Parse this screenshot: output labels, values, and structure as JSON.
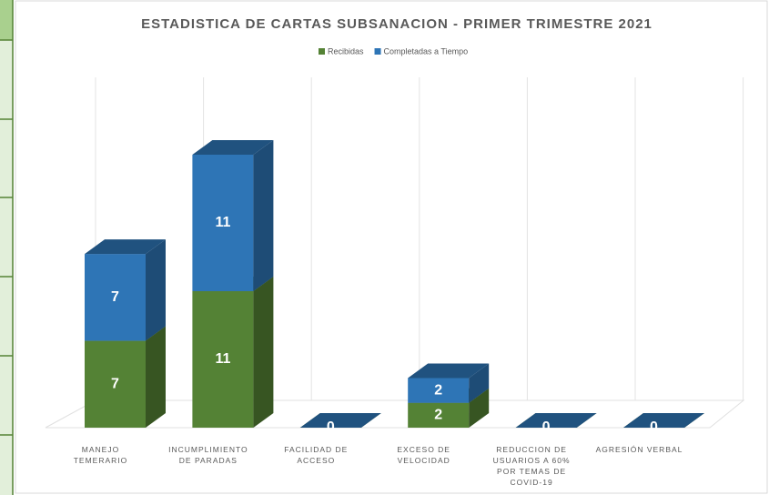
{
  "chart_data": {
    "type": "bar3d_stacked",
    "title": "ESTADISTICA DE CARTAS SUBSANACION - PRIMER TRIMESTRE 2021",
    "categories": [
      "MANEJO TEMERARIO",
      "INCUMPLIMIENTO DE PARADAS",
      "FACILIDAD DE ACCESO",
      "EXCESO DE VELOCIDAD",
      "REDUCCION DE USUARIOS A 60% POR TEMAS DE COVID-19",
      "AGRESIÓN VERBAL"
    ],
    "series": [
      {
        "name": "Recibidas",
        "color": "#548235",
        "values": [
          7,
          11,
          0,
          2,
          0,
          0
        ]
      },
      {
        "name": "Completadas a Tiempo",
        "color": "#2e75b6",
        "values": [
          7,
          11,
          0,
          2,
          0,
          0
        ]
      }
    ],
    "legend": "top"
  }
}
